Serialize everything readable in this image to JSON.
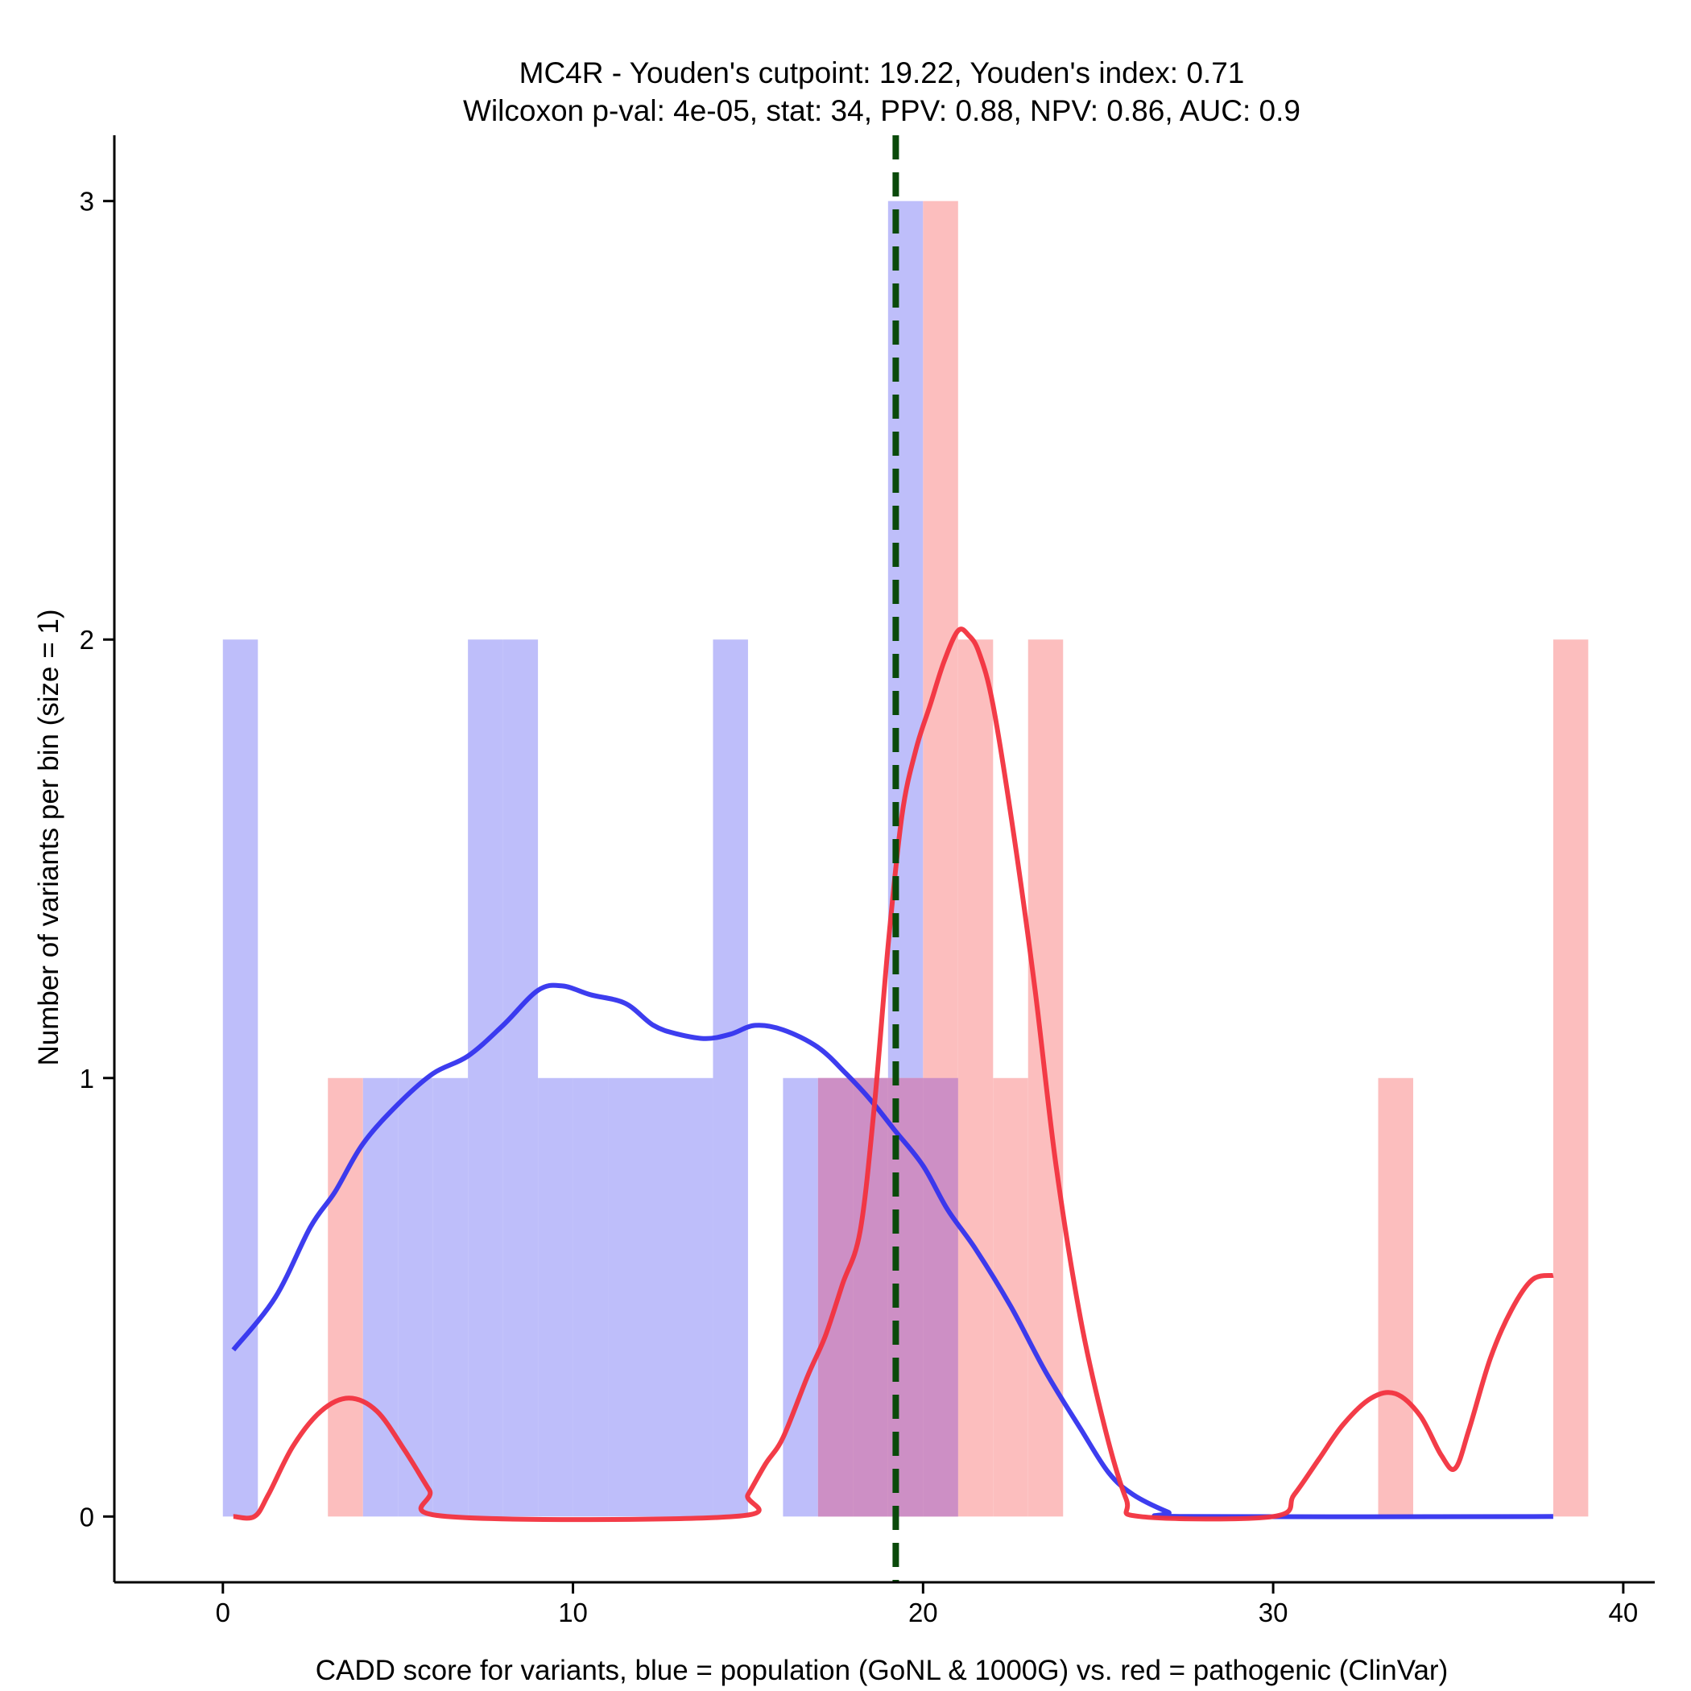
{
  "chart_data": {
    "type": "histogram",
    "title_line1": "MC4R - Youden's cutpoint: 19.22, Youden's index: 0.71",
    "title_line2": "Wilcoxon p-val: 4e-05, stat: 34, PPV: 0.88, NPV: 0.86, AUC: 0.9",
    "xlabel": "CADD score for variants, blue = population (GoNL & 1000G) vs. red = pathogenic (ClinVar)",
    "ylabel": "Number of variants per bin (size = 1)",
    "xlim": [
      -3.1,
      40.9
    ],
    "ylim": [
      -0.15,
      3.15
    ],
    "xticks": [
      0,
      10,
      20,
      30,
      40
    ],
    "yticks": [
      0,
      1,
      2,
      3
    ],
    "cutpoint": 19.22,
    "colors": {
      "population_fill": "#BEBEFA",
      "pathogenic_fill": "#FCBEBE",
      "overlap_fill": "#CD8FC5",
      "population_line": "#3333EE",
      "pathogenic_line": "#F2323E",
      "cutpoint_line": "#0A4A0A",
      "axis": "#000000"
    },
    "series": [
      {
        "name": "population (GoNL & 1000G)",
        "bins": [
          {
            "x0": 0,
            "x1": 1,
            "count": 2
          },
          {
            "x0": 4,
            "x1": 5,
            "count": 1
          },
          {
            "x0": 5,
            "x1": 6,
            "count": 1
          },
          {
            "x0": 6,
            "x1": 7,
            "count": 1
          },
          {
            "x0": 7,
            "x1": 8,
            "count": 2
          },
          {
            "x0": 8,
            "x1": 9,
            "count": 2
          },
          {
            "x0": 9,
            "x1": 10,
            "count": 1
          },
          {
            "x0": 10,
            "x1": 11,
            "count": 1
          },
          {
            "x0": 11,
            "x1": 12,
            "count": 1
          },
          {
            "x0": 12,
            "x1": 13,
            "count": 1
          },
          {
            "x0": 13,
            "x1": 14,
            "count": 1
          },
          {
            "x0": 14,
            "x1": 15,
            "count": 2
          },
          {
            "x0": 16,
            "x1": 17,
            "count": 1
          },
          {
            "x0": 17,
            "x1": 18,
            "count": 1
          },
          {
            "x0": 18,
            "x1": 19,
            "count": 1
          },
          {
            "x0": 19,
            "x1": 20,
            "count": 3
          },
          {
            "x0": 20,
            "x1": 21,
            "count": 1
          }
        ],
        "density": [
          [
            0.3,
            0.38
          ],
          [
            1.5,
            0.5
          ],
          [
            2.5,
            0.66
          ],
          [
            3.2,
            0.74
          ],
          [
            4.0,
            0.85
          ],
          [
            5.0,
            0.94
          ],
          [
            6.0,
            1.01
          ],
          [
            7.0,
            1.05
          ],
          [
            8.0,
            1.12
          ],
          [
            9.0,
            1.2
          ],
          [
            9.7,
            1.21
          ],
          [
            10.5,
            1.19
          ],
          [
            11.5,
            1.17
          ],
          [
            12.3,
            1.12
          ],
          [
            13.0,
            1.1
          ],
          [
            13.8,
            1.09
          ],
          [
            14.5,
            1.1
          ],
          [
            15.2,
            1.12
          ],
          [
            16.0,
            1.11
          ],
          [
            17.0,
            1.07
          ],
          [
            17.8,
            1.01
          ],
          [
            18.5,
            0.95
          ],
          [
            19.2,
            0.88
          ],
          [
            20.0,
            0.8
          ],
          [
            20.7,
            0.7
          ],
          [
            21.5,
            0.61
          ],
          [
            22.5,
            0.48
          ],
          [
            23.5,
            0.33
          ],
          [
            24.5,
            0.2
          ],
          [
            25.3,
            0.1
          ],
          [
            26.0,
            0.05
          ],
          [
            27.0,
            0.01
          ],
          [
            27.5,
            0.0
          ],
          [
            38.0,
            0.0
          ]
        ]
      },
      {
        "name": "pathogenic (ClinVar)",
        "bins": [
          {
            "x0": 3,
            "x1": 4,
            "count": 1
          },
          {
            "x0": 17,
            "x1": 18,
            "count": 1
          },
          {
            "x0": 18,
            "x1": 19,
            "count": 1
          },
          {
            "x0": 19,
            "x1": 20,
            "count": 1
          },
          {
            "x0": 20,
            "x1": 21,
            "count": 3
          },
          {
            "x0": 21,
            "x1": 22,
            "count": 2
          },
          {
            "x0": 22,
            "x1": 23,
            "count": 1
          },
          {
            "x0": 23,
            "x1": 24,
            "count": 2
          },
          {
            "x0": 33,
            "x1": 34,
            "count": 1
          },
          {
            "x0": 38,
            "x1": 39,
            "count": 2
          }
        ],
        "density": [
          [
            0.3,
            0.0
          ],
          [
            0.9,
            0.0
          ],
          [
            1.3,
            0.05
          ],
          [
            2.0,
            0.16
          ],
          [
            2.8,
            0.24
          ],
          [
            3.6,
            0.27
          ],
          [
            4.4,
            0.24
          ],
          [
            5.2,
            0.15
          ],
          [
            5.9,
            0.06
          ],
          [
            6.4,
            0.0
          ],
          [
            14.6,
            0.0
          ],
          [
            15.0,
            0.05
          ],
          [
            15.5,
            0.12
          ],
          [
            16.0,
            0.18
          ],
          [
            16.7,
            0.32
          ],
          [
            17.2,
            0.41
          ],
          [
            17.7,
            0.53
          ],
          [
            18.2,
            0.65
          ],
          [
            18.6,
            0.93
          ],
          [
            19.0,
            1.3
          ],
          [
            19.4,
            1.6
          ],
          [
            19.8,
            1.75
          ],
          [
            20.2,
            1.85
          ],
          [
            20.6,
            1.95
          ],
          [
            21.0,
            2.02
          ],
          [
            21.3,
            2.01
          ],
          [
            21.6,
            1.97
          ],
          [
            22.0,
            1.85
          ],
          [
            22.6,
            1.55
          ],
          [
            23.2,
            1.2
          ],
          [
            23.8,
            0.8
          ],
          [
            24.5,
            0.45
          ],
          [
            25.2,
            0.2
          ],
          [
            25.8,
            0.04
          ],
          [
            26.2,
            0.0
          ],
          [
            30.0,
            0.0
          ],
          [
            30.6,
            0.05
          ],
          [
            31.3,
            0.13
          ],
          [
            32.0,
            0.21
          ],
          [
            32.8,
            0.27
          ],
          [
            33.5,
            0.28
          ],
          [
            34.2,
            0.23
          ],
          [
            34.8,
            0.14
          ],
          [
            35.2,
            0.11
          ],
          [
            35.6,
            0.2
          ],
          [
            36.2,
            0.36
          ],
          [
            36.8,
            0.47
          ],
          [
            37.4,
            0.54
          ],
          [
            38.0,
            0.55
          ]
        ]
      }
    ]
  }
}
